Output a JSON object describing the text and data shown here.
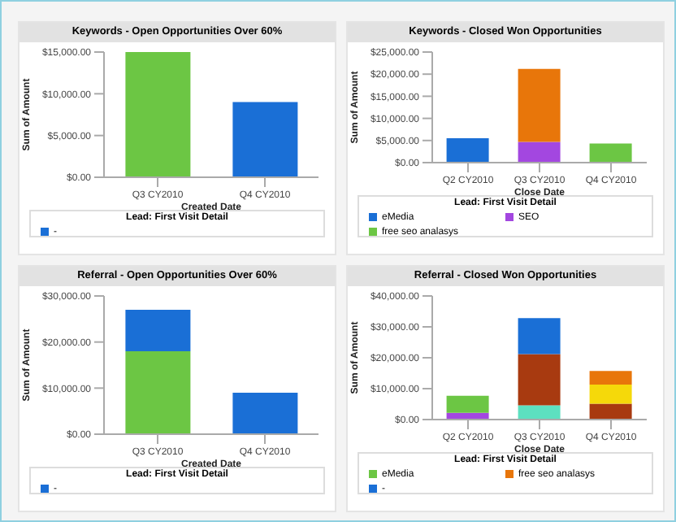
{
  "chart_data": [
    {
      "type": "bar",
      "title": "Keywords - Open Opportunities Over 60%",
      "xlabel": "Created Date",
      "ylabel": "Sum of Amount",
      "legend_title": "Lead: First Visit Detail",
      "legend": "bottom",
      "stacked": true,
      "categories": [
        "Q3 CY2010",
        "Q4 CY2010"
      ],
      "ylim": [
        0,
        15000
      ],
      "yticks": [
        {
          "value": 0,
          "label": "$0.00"
        },
        {
          "value": 5000,
          "label": "$5,000.00"
        },
        {
          "value": 10000,
          "label": "$10,000.00"
        },
        {
          "value": 15000,
          "label": "$15,000.00"
        }
      ],
      "series": [
        {
          "name": "-",
          "color": "#1a6fd6",
          "values": [
            null,
            9000
          ]
        },
        {
          "color": "#6cc644",
          "values": [
            15000,
            null
          ]
        }
      ]
    },
    {
      "type": "bar",
      "title": "Keywords - Closed Won Opportunities",
      "xlabel": "Close Date",
      "ylabel": "Sum of Amount",
      "legend_title": "Lead: First Visit Detail",
      "legend": "bottom",
      "stacked": true,
      "categories": [
        "Q2 CY2010",
        "Q3 CY2010",
        "Q4 CY2010"
      ],
      "ylim": [
        0,
        25000
      ],
      "yticks": [
        {
          "value": 0,
          "label": "$0.00"
        },
        {
          "value": 5000,
          "label": "$5,000.00"
        },
        {
          "value": 10000,
          "label": "$10,000.00"
        },
        {
          "value": 15000,
          "label": "$15,000.00"
        },
        {
          "value": 20000,
          "label": "$20,000.00"
        },
        {
          "value": 25000,
          "label": "$25,000.00"
        }
      ],
      "series": [
        {
          "name": "eMedia",
          "color": "#1a6fd6",
          "values": [
            5500,
            null,
            null
          ]
        },
        {
          "name": "SEO",
          "color": "#a347e0",
          "values": [
            null,
            4700,
            null
          ]
        },
        {
          "name": "free seo analasys",
          "color": "#6cc644",
          "values": [
            null,
            null,
            4300
          ]
        },
        {
          "color": "#e8760a",
          "values": [
            null,
            16500,
            null
          ]
        }
      ]
    },
    {
      "type": "bar",
      "title": "Referral - Open Opportunities Over 60%",
      "xlabel": "Created Date",
      "ylabel": "Sum of Amount",
      "legend_title": "Lead: First Visit Detail",
      "legend": "bottom",
      "stacked": true,
      "categories": [
        "Q3 CY2010",
        "Q4 CY2010"
      ],
      "ylim": [
        0,
        30000
      ],
      "yticks": [
        {
          "value": 0,
          "label": "$0.00"
        },
        {
          "value": 10000,
          "label": "$10,000.00"
        },
        {
          "value": 20000,
          "label": "$20,000.00"
        },
        {
          "value": 30000,
          "label": "$30,000.00"
        }
      ],
      "series": [
        {
          "color": "#6cc644",
          "values": [
            18000,
            null
          ]
        },
        {
          "name": "-",
          "color": "#1a6fd6",
          "values": [
            9000,
            9000
          ]
        }
      ]
    },
    {
      "type": "bar",
      "title": "Referral - Closed Won Opportunities",
      "xlabel": "Close Date",
      "ylabel": "Sum of Amount",
      "legend_title": "Lead: First Visit Detail",
      "legend": "bottom",
      "stacked": true,
      "categories": [
        "Q2 CY2010",
        "Q3 CY2010",
        "Q4 CY2010"
      ],
      "ylim": [
        0,
        40000
      ],
      "yticks": [
        {
          "value": 0,
          "label": "$0.00"
        },
        {
          "value": 10000,
          "label": "$10,000.00"
        },
        {
          "value": 20000,
          "label": "$20,000.00"
        },
        {
          "value": 30000,
          "label": "$30,000.00"
        },
        {
          "value": 40000,
          "label": "$40,000.00"
        }
      ],
      "series": [
        {
          "color": "#a347e0",
          "values": [
            2200,
            null,
            null
          ]
        },
        {
          "color": "#5de0c0",
          "values": [
            null,
            4600,
            null
          ]
        },
        {
          "color": "#a83a10",
          "values": [
            null,
            16600,
            5100
          ]
        },
        {
          "color": "#f5d90a",
          "values": [
            null,
            null,
            6200
          ]
        },
        {
          "name": "eMedia",
          "color": "#6cc644",
          "values": [
            5500,
            null,
            null
          ]
        },
        {
          "name": "free seo analasys",
          "color": "#e8760a",
          "values": [
            null,
            null,
            4400
          ]
        },
        {
          "name": "-",
          "color": "#1a6fd6",
          "values": [
            null,
            11600,
            null
          ]
        }
      ]
    }
  ]
}
